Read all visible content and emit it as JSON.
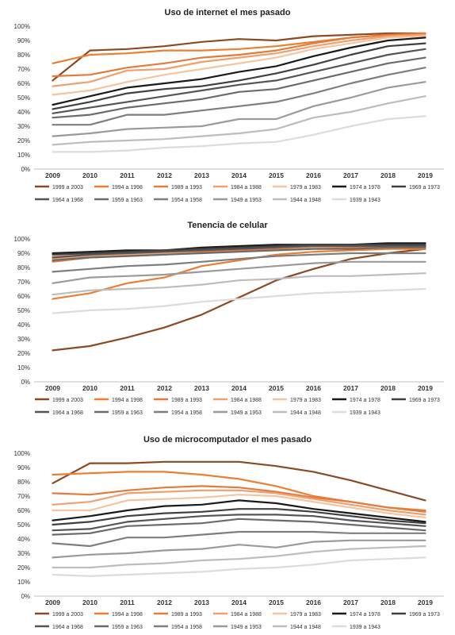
{
  "chart_data": [
    {
      "type": "line",
      "title": "Uso de internet el mes pasado",
      "xlabel": "",
      "ylabel": "",
      "ylim": [
        0,
        100
      ],
      "yticks": [
        "0%",
        "10%",
        "20%",
        "30%",
        "40%",
        "50%",
        "60%",
        "70%",
        "80%",
        "90%",
        "100%"
      ],
      "categories": [
        "2009",
        "2010",
        "2011",
        "2012",
        "2013",
        "2014",
        "2015",
        "2016",
        "2017",
        "2018",
        "2019"
      ],
      "grid": false,
      "legend": "bottom",
      "series": [
        {
          "name": "1999 a 2003",
          "color": "#8B4A22",
          "values": [
            62,
            83,
            84,
            86,
            89,
            91,
            90,
            93,
            94,
            95,
            95
          ]
        },
        {
          "name": "1994 a 1998",
          "color": "#ED7D31",
          "values": [
            74,
            80,
            81,
            83,
            83,
            84,
            86,
            89,
            92,
            94,
            95
          ]
        },
        {
          "name": "1989 a 1993",
          "color": "#E37B3C",
          "values": [
            65,
            66,
            71,
            74,
            78,
            80,
            83,
            88,
            92,
            94,
            95
          ]
        },
        {
          "name": "1984 a 1988",
          "color": "#F0A070",
          "values": [
            58,
            61,
            69,
            70,
            75,
            78,
            81,
            86,
            90,
            93,
            94
          ]
        },
        {
          "name": "1979 a 1983",
          "color": "#F6C49F",
          "values": [
            52,
            55,
            61,
            66,
            70,
            74,
            78,
            84,
            88,
            92,
            93
          ]
        },
        {
          "name": "1974 a 1978",
          "color": "#1A1A1A",
          "values": [
            45,
            51,
            57,
            60,
            63,
            68,
            72,
            79,
            85,
            90,
            92
          ]
        },
        {
          "name": "1969 a 1973",
          "color": "#404040",
          "values": [
            42,
            47,
            53,
            56,
            58,
            62,
            67,
            73,
            80,
            86,
            88
          ]
        },
        {
          "name": "1964 a 1968",
          "color": "#555555",
          "values": [
            39,
            43,
            47,
            51,
            55,
            59,
            62,
            68,
            74,
            80,
            84
          ]
        },
        {
          "name": "1959 a 1963",
          "color": "#6B6B6B",
          "values": [
            36,
            38,
            43,
            46,
            49,
            54,
            56,
            62,
            68,
            74,
            78
          ]
        },
        {
          "name": "1954 a 1958",
          "color": "#7E7E7E",
          "values": [
            31,
            31,
            38,
            38,
            41,
            44,
            47,
            53,
            60,
            66,
            71
          ]
        },
        {
          "name": "1949 a 1953",
          "color": "#9A9A9A",
          "values": [
            23,
            25,
            28,
            29,
            30,
            35,
            35,
            44,
            50,
            57,
            61
          ]
        },
        {
          "name": "1944 a 1948",
          "color": "#BDBDBD",
          "values": [
            17,
            19,
            20,
            21,
            23,
            25,
            28,
            36,
            40,
            46,
            51
          ]
        },
        {
          "name": "1939 a 1943",
          "color": "#DCDCDC",
          "values": [
            12,
            12,
            13,
            15,
            16,
            18,
            19,
            24,
            30,
            35,
            37
          ]
        }
      ]
    },
    {
      "type": "line",
      "title": "Tenencia de celular",
      "xlabel": "",
      "ylabel": "",
      "ylim": [
        0,
        100
      ],
      "yticks": [
        "0%",
        "10%",
        "20%",
        "30%",
        "40%",
        "50%",
        "60%",
        "70%",
        "80%",
        "90%",
        "100%"
      ],
      "categories": [
        "2009",
        "2010",
        "2011",
        "2012",
        "2013",
        "2014",
        "2015",
        "2016",
        "2017",
        "2018",
        "2019"
      ],
      "grid": false,
      "legend": "bottom",
      "series": [
        {
          "name": "1999 a 2003",
          "color": "#8B4A22",
          "values": [
            22,
            25,
            31,
            38,
            47,
            59,
            71,
            79,
            86,
            90,
            93
          ]
        },
        {
          "name": "1994 a 1998",
          "color": "#ED7D31",
          "values": [
            58,
            62,
            69,
            73,
            81,
            85,
            89,
            91,
            92,
            93,
            93
          ]
        },
        {
          "name": "1989 a 1993",
          "color": "#E37B3C",
          "values": [
            84,
            87,
            88,
            89,
            91,
            92,
            93,
            94,
            94,
            95,
            95
          ]
        },
        {
          "name": "1984 a 1988",
          "color": "#F0A070",
          "values": [
            86,
            88,
            89,
            90,
            92,
            93,
            94,
            94,
            95,
            95,
            95
          ]
        },
        {
          "name": "1979 a 1983",
          "color": "#F6C49F",
          "values": [
            88,
            90,
            91,
            91,
            93,
            94,
            95,
            95,
            96,
            96,
            96
          ]
        },
        {
          "name": "1974 a 1978",
          "color": "#1A1A1A",
          "values": [
            90,
            91,
            92,
            92,
            94,
            95,
            96,
            96,
            96,
            97,
            97
          ]
        },
        {
          "name": "1969 a 1973",
          "color": "#404040",
          "values": [
            89,
            90,
            91,
            92,
            93,
            94,
            95,
            96,
            96,
            96,
            96
          ]
        },
        {
          "name": "1964 a 1968",
          "color": "#555555",
          "values": [
            87,
            89,
            90,
            91,
            92,
            93,
            94,
            95,
            95,
            95,
            95
          ]
        },
        {
          "name": "1959 a 1963",
          "color": "#6B6B6B",
          "values": [
            85,
            87,
            88,
            89,
            90,
            91,
            92,
            93,
            93,
            94,
            94
          ]
        },
        {
          "name": "1954 a 1958",
          "color": "#7E7E7E",
          "values": [
            77,
            79,
            81,
            82,
            84,
            86,
            88,
            89,
            90,
            90,
            90
          ]
        },
        {
          "name": "1949 a 1953",
          "color": "#9A9A9A",
          "values": [
            69,
            73,
            74,
            75,
            77,
            79,
            81,
            83,
            84,
            84,
            84
          ]
        },
        {
          "name": "1944 a 1948",
          "color": "#BDBDBD",
          "values": [
            61,
            64,
            65,
            66,
            68,
            71,
            72,
            74,
            74,
            75,
            76
          ]
        },
        {
          "name": "1939 a 1943",
          "color": "#DCDCDC",
          "values": [
            48,
            50,
            51,
            53,
            56,
            58,
            60,
            62,
            63,
            64,
            65
          ]
        }
      ]
    },
    {
      "type": "line",
      "title": "Uso de microcomputador el mes pasado",
      "xlabel": "",
      "ylabel": "",
      "ylim": [
        0,
        100
      ],
      "yticks": [
        "0%",
        "10%",
        "20%",
        "30%",
        "40%",
        "50%",
        "60%",
        "70%",
        "80%",
        "90%",
        "100%"
      ],
      "categories": [
        "2009",
        "2010",
        "2011",
        "2012",
        "2013",
        "2014",
        "2015",
        "2016",
        "2017",
        "2018",
        "2019"
      ],
      "grid": false,
      "legend": "bottom",
      "series": [
        {
          "name": "1999 a 2003",
          "color": "#8B4A22",
          "values": [
            79,
            93,
            93,
            94,
            94,
            94,
            91,
            87,
            81,
            74,
            67
          ]
        },
        {
          "name": "1994 a 1998",
          "color": "#ED7D31",
          "values": [
            85,
            86,
            87,
            87,
            85,
            82,
            77,
            70,
            66,
            62,
            60
          ]
        },
        {
          "name": "1989 a 1993",
          "color": "#E37B3C",
          "values": [
            72,
            71,
            74,
            76,
            77,
            76,
            73,
            69,
            66,
            62,
            59
          ]
        },
        {
          "name": "1984 a 1988",
          "color": "#F0A070",
          "values": [
            64,
            66,
            72,
            73,
            74,
            74,
            72,
            68,
            64,
            60,
            57
          ]
        },
        {
          "name": "1979 a 1983",
          "color": "#F6C49F",
          "values": [
            60,
            60,
            67,
            68,
            69,
            71,
            70,
            66,
            62,
            58,
            55
          ]
        },
        {
          "name": "1974 a 1978",
          "color": "#1A1A1A",
          "values": [
            53,
            56,
            60,
            63,
            64,
            67,
            65,
            61,
            58,
            55,
            52
          ]
        },
        {
          "name": "1969 a 1973",
          "color": "#404040",
          "values": [
            50,
            52,
            56,
            58,
            59,
            61,
            61,
            59,
            56,
            53,
            51
          ]
        },
        {
          "name": "1964 a 1968",
          "color": "#555555",
          "values": [
            46,
            47,
            52,
            54,
            56,
            57,
            57,
            56,
            53,
            51,
            49
          ]
        },
        {
          "name": "1959 a 1963",
          "color": "#6B6B6B",
          "values": [
            43,
            44,
            49,
            50,
            51,
            54,
            53,
            52,
            50,
            48,
            46
          ]
        },
        {
          "name": "1954 a 1958",
          "color": "#7E7E7E",
          "values": [
            37,
            35,
            41,
            41,
            43,
            45,
            45,
            45,
            44,
            44,
            44
          ]
        },
        {
          "name": "1949 a 1953",
          "color": "#9A9A9A",
          "values": [
            27,
            29,
            30,
            32,
            33,
            36,
            34,
            38,
            39,
            39,
            39
          ]
        },
        {
          "name": "1944 a 1948",
          "color": "#BDBDBD",
          "values": [
            20,
            20,
            22,
            23,
            25,
            26,
            28,
            31,
            33,
            34,
            35
          ]
        },
        {
          "name": "1939 a 1943",
          "color": "#DCDCDC",
          "values": [
            15,
            14,
            15,
            16,
            17,
            19,
            20,
            22,
            25,
            26,
            27
          ]
        }
      ]
    }
  ]
}
